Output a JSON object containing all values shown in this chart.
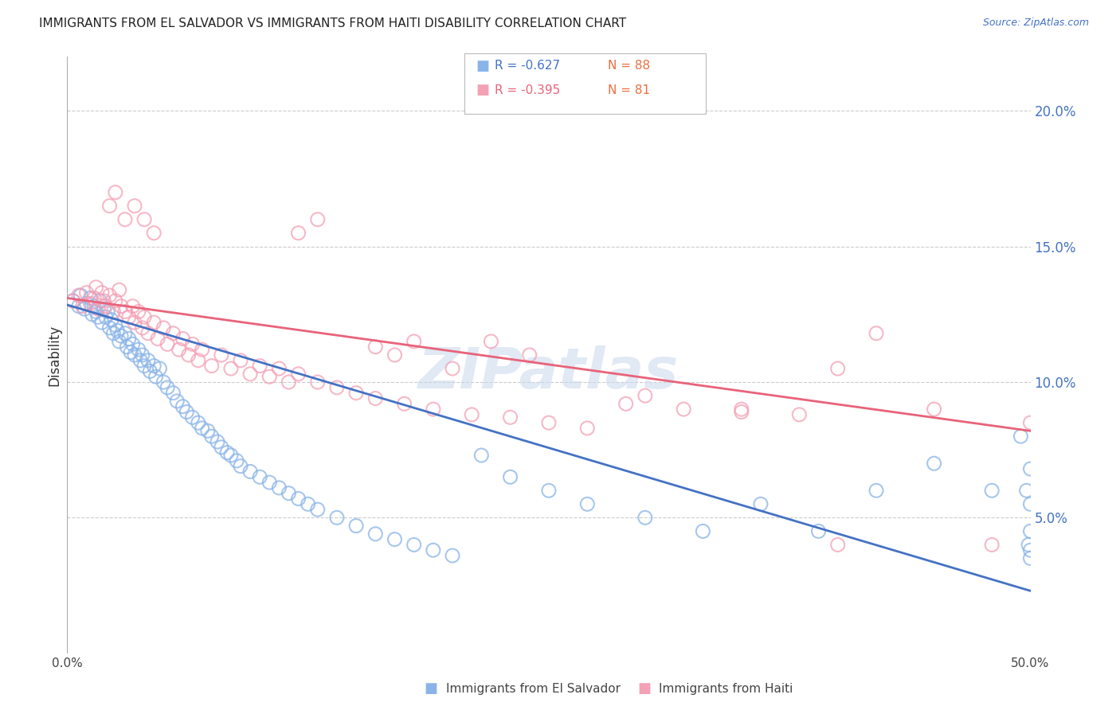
{
  "title": "IMMIGRANTS FROM EL SALVADOR VS IMMIGRANTS FROM HAITI DISABILITY CORRELATION CHART",
  "source": "Source: ZipAtlas.com",
  "ylabel": "Disability",
  "x_min": 0.0,
  "x_max": 0.5,
  "y_min": 0.0,
  "y_max": 0.22,
  "y_ticks_right": [
    0.05,
    0.1,
    0.15,
    0.2
  ],
  "y_tick_labels_right": [
    "5.0%",
    "10.0%",
    "15.0%",
    "20.0%"
  ],
  "color_salvador": "#8ab4e8",
  "color_haiti": "#f4a0b5",
  "line_color_salvador": "#4472c4",
  "line_color_haiti": "#e8637a",
  "legend_R_salvador": "R = -0.627",
  "legend_N_salvador": "N = 88",
  "legend_R_haiti": "R = -0.395",
  "legend_N_haiti": "N = 81",
  "watermark": "ZIPatlas",
  "trend_salvador": [
    0.1285,
    0.023
  ],
  "trend_haiti": [
    0.131,
    0.082
  ],
  "scatter_salvador_x": [
    0.003,
    0.006,
    0.007,
    0.009,
    0.01,
    0.012,
    0.013,
    0.014,
    0.015,
    0.016,
    0.017,
    0.018,
    0.019,
    0.02,
    0.021,
    0.022,
    0.023,
    0.024,
    0.025,
    0.026,
    0.027,
    0.028,
    0.03,
    0.031,
    0.032,
    0.033,
    0.034,
    0.035,
    0.037,
    0.038,
    0.039,
    0.04,
    0.042,
    0.043,
    0.045,
    0.046,
    0.048,
    0.05,
    0.052,
    0.055,
    0.057,
    0.06,
    0.062,
    0.065,
    0.068,
    0.07,
    0.073,
    0.075,
    0.078,
    0.08,
    0.083,
    0.085,
    0.088,
    0.09,
    0.095,
    0.1,
    0.105,
    0.11,
    0.115,
    0.12,
    0.125,
    0.13,
    0.14,
    0.15,
    0.16,
    0.17,
    0.18,
    0.19,
    0.2,
    0.215,
    0.23,
    0.25,
    0.27,
    0.3,
    0.33,
    0.36,
    0.39,
    0.42,
    0.45,
    0.48,
    0.495,
    0.498,
    0.499,
    0.5,
    0.5,
    0.5,
    0.5,
    0.5
  ],
  "scatter_salvador_y": [
    0.13,
    0.128,
    0.132,
    0.127,
    0.129,
    0.131,
    0.125,
    0.128,
    0.126,
    0.124,
    0.13,
    0.122,
    0.127,
    0.124,
    0.126,
    0.12,
    0.123,
    0.118,
    0.121,
    0.119,
    0.115,
    0.117,
    0.118,
    0.113,
    0.116,
    0.111,
    0.114,
    0.11,
    0.112,
    0.108,
    0.11,
    0.106,
    0.108,
    0.104,
    0.106,
    0.102,
    0.105,
    0.1,
    0.098,
    0.096,
    0.093,
    0.091,
    0.089,
    0.087,
    0.085,
    0.083,
    0.082,
    0.08,
    0.078,
    0.076,
    0.074,
    0.073,
    0.071,
    0.069,
    0.067,
    0.065,
    0.063,
    0.061,
    0.059,
    0.057,
    0.055,
    0.053,
    0.05,
    0.047,
    0.044,
    0.042,
    0.04,
    0.038,
    0.036,
    0.073,
    0.065,
    0.06,
    0.055,
    0.05,
    0.045,
    0.055,
    0.045,
    0.06,
    0.07,
    0.06,
    0.08,
    0.06,
    0.04,
    0.035,
    0.068,
    0.055,
    0.045,
    0.038
  ],
  "scatter_haiti_x": [
    0.003,
    0.006,
    0.008,
    0.01,
    0.012,
    0.014,
    0.015,
    0.016,
    0.018,
    0.019,
    0.02,
    0.022,
    0.024,
    0.025,
    0.027,
    0.028,
    0.03,
    0.032,
    0.034,
    0.035,
    0.037,
    0.039,
    0.04,
    0.042,
    0.045,
    0.047,
    0.05,
    0.052,
    0.055,
    0.058,
    0.06,
    0.063,
    0.065,
    0.068,
    0.07,
    0.075,
    0.08,
    0.085,
    0.09,
    0.095,
    0.1,
    0.105,
    0.11,
    0.115,
    0.12,
    0.13,
    0.14,
    0.15,
    0.16,
    0.175,
    0.19,
    0.21,
    0.23,
    0.25,
    0.27,
    0.29,
    0.32,
    0.35,
    0.38,
    0.4,
    0.42,
    0.45,
    0.48,
    0.5,
    0.022,
    0.025,
    0.03,
    0.035,
    0.04,
    0.045,
    0.3,
    0.35,
    0.16,
    0.17,
    0.18,
    0.2,
    0.22,
    0.24,
    0.12,
    0.13,
    0.4
  ],
  "scatter_haiti_y": [
    0.13,
    0.132,
    0.128,
    0.133,
    0.129,
    0.131,
    0.135,
    0.127,
    0.133,
    0.13,
    0.128,
    0.132,
    0.126,
    0.13,
    0.134,
    0.128,
    0.126,
    0.124,
    0.128,
    0.122,
    0.126,
    0.12,
    0.124,
    0.118,
    0.122,
    0.116,
    0.12,
    0.114,
    0.118,
    0.112,
    0.116,
    0.11,
    0.114,
    0.108,
    0.112,
    0.106,
    0.11,
    0.105,
    0.108,
    0.103,
    0.106,
    0.102,
    0.105,
    0.1,
    0.103,
    0.1,
    0.098,
    0.096,
    0.094,
    0.092,
    0.09,
    0.088,
    0.087,
    0.085,
    0.083,
    0.092,
    0.09,
    0.089,
    0.088,
    0.105,
    0.118,
    0.09,
    0.04,
    0.085,
    0.165,
    0.17,
    0.16,
    0.165,
    0.16,
    0.155,
    0.095,
    0.09,
    0.113,
    0.11,
    0.115,
    0.105,
    0.115,
    0.11,
    0.155,
    0.16,
    0.04
  ]
}
